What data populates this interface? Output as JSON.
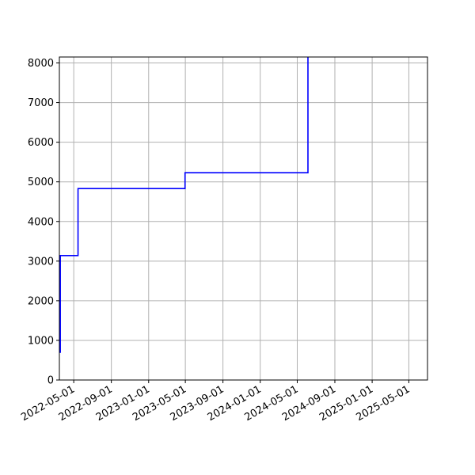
{
  "chart_data": {
    "type": "line",
    "title": "",
    "xlabel": "",
    "ylabel": "",
    "grid": true,
    "line_color": "#0000ff",
    "step": "post",
    "x_ticks": [
      "2022-05-01",
      "2022-09-01",
      "2023-01-01",
      "2023-05-01",
      "2023-09-01",
      "2024-01-01",
      "2024-05-01",
      "2024-09-01",
      "2025-01-01",
      "2025-05-01"
    ],
    "y_ticks": [
      0,
      1000,
      2000,
      3000,
      4000,
      5000,
      6000,
      7000,
      8000
    ],
    "ylim": [
      0,
      8150
    ],
    "xlim": [
      "2022-03-15",
      "2025-07-01"
    ],
    "series": [
      {
        "x": [
          "2022-03-16",
          "2022-03-18",
          "2022-05-15",
          "2023-04-30",
          "2024-06-05",
          "2024-06-05"
        ],
        "y": [
          700,
          3140,
          4830,
          5230,
          8150,
          8150
        ]
      }
    ]
  }
}
